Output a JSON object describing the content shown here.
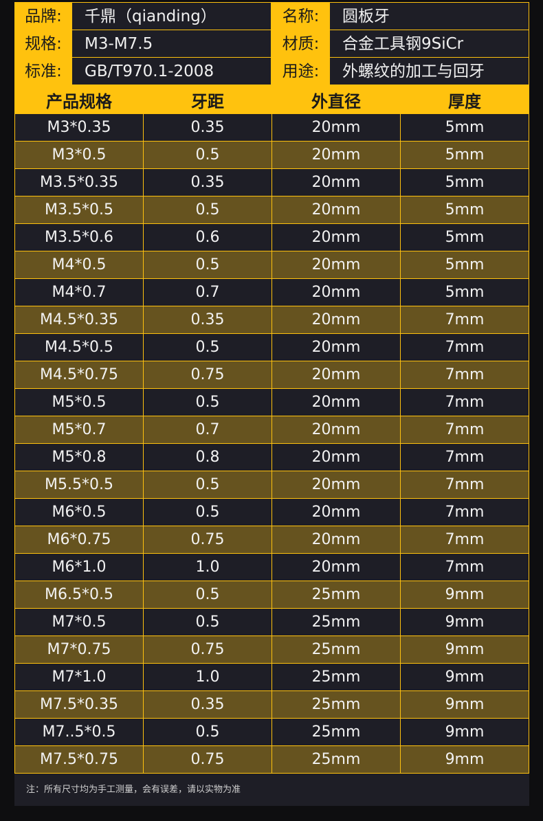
{
  "info": [
    {
      "label": "品牌:",
      "value": "千鼎（qianding）",
      "label2": "名称:",
      "value2": "圆板牙"
    },
    {
      "label": "规格:",
      "value": "M3-M7.5",
      "label2": "材质:",
      "value2": "合金工具钢9SiCr"
    },
    {
      "label": "标准:",
      "value": "GB/T970.1-2008",
      "label2": "用途:",
      "value2": "外螺纹的加工与回牙"
    }
  ],
  "headers": [
    "产品规格",
    "牙距",
    "外直径",
    "厚度"
  ],
  "rows": [
    [
      "M3*0.35",
      "0.35",
      "20mm",
      "5mm"
    ],
    [
      "M3*0.5",
      "0.5",
      "20mm",
      "5mm"
    ],
    [
      "M3.5*0.35",
      "0.35",
      "20mm",
      "5mm"
    ],
    [
      "M3.5*0.5",
      "0.5",
      "20mm",
      "5mm"
    ],
    [
      "M3.5*0.6",
      "0.6",
      "20mm",
      "5mm"
    ],
    [
      "M4*0.5",
      "0.5",
      "20mm",
      "5mm"
    ],
    [
      "M4*0.7",
      "0.7",
      "20mm",
      "5mm"
    ],
    [
      "M4.5*0.35",
      "0.35",
      "20mm",
      "7mm"
    ],
    [
      "M4.5*0.5",
      "0.5",
      "20mm",
      "7mm"
    ],
    [
      "M4.5*0.75",
      "0.75",
      "20mm",
      "7mm"
    ],
    [
      "M5*0.5",
      "0.5",
      "20mm",
      "7mm"
    ],
    [
      "M5*0.7",
      "0.7",
      "20mm",
      "7mm"
    ],
    [
      "M5*0.8",
      "0.8",
      "20mm",
      "7mm"
    ],
    [
      "M5.5*0.5",
      "0.5",
      "20mm",
      "7mm"
    ],
    [
      "M6*0.5",
      "0.5",
      "20mm",
      "7mm"
    ],
    [
      "M6*0.75",
      "0.75",
      "20mm",
      "7mm"
    ],
    [
      "M6*1.0",
      "1.0",
      "20mm",
      "7mm"
    ],
    [
      "M6.5*0.5",
      "0.5",
      "25mm",
      "9mm"
    ],
    [
      "M7*0.5",
      "0.5",
      "25mm",
      "9mm"
    ],
    [
      "M7*0.75",
      "0.75",
      "25mm",
      "9mm"
    ],
    [
      "M7*1.0",
      "1.0",
      "25mm",
      "9mm"
    ],
    [
      "M7.5*0.35",
      "0.35",
      "25mm",
      "9mm"
    ],
    [
      "M7..5*0.5",
      "0.5",
      "25mm",
      "9mm"
    ],
    [
      "M7.5*0.75",
      "0.75",
      "25mm",
      "9mm"
    ]
  ],
  "note": "注：所有尺寸均为手工测量，会有误差，请以实物为准",
  "colors": {
    "accent": "#ffc20e",
    "row_dark": "#1e1e26",
    "row_gold": "#66531f"
  }
}
